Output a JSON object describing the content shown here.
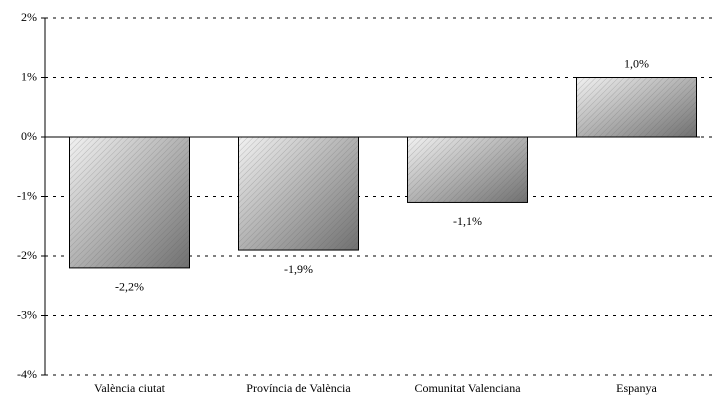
{
  "chart_data": {
    "type": "bar",
    "categories": [
      "València ciutat",
      "Província de València",
      "Comunitat Valenciana",
      "Espanya"
    ],
    "values": [
      -2.2,
      -1.9,
      -1.1,
      1.0
    ],
    "value_labels": [
      "-2,2%",
      "-1,9%",
      "-1,1%",
      "1,0%"
    ],
    "color": "#a0a0a0",
    "ylim": [
      -4,
      2
    ],
    "yticks": [
      {
        "value": -4,
        "label": "-4%"
      },
      {
        "value": -3,
        "label": "-3%"
      },
      {
        "value": -2,
        "label": "-2%"
      },
      {
        "value": -1,
        "label": "-1%"
      },
      {
        "value": 0,
        "label": "0%"
      },
      {
        "value": 1,
        "label": "1%"
      },
      {
        "value": 2,
        "label": "2%"
      }
    ],
    "grid": true
  }
}
